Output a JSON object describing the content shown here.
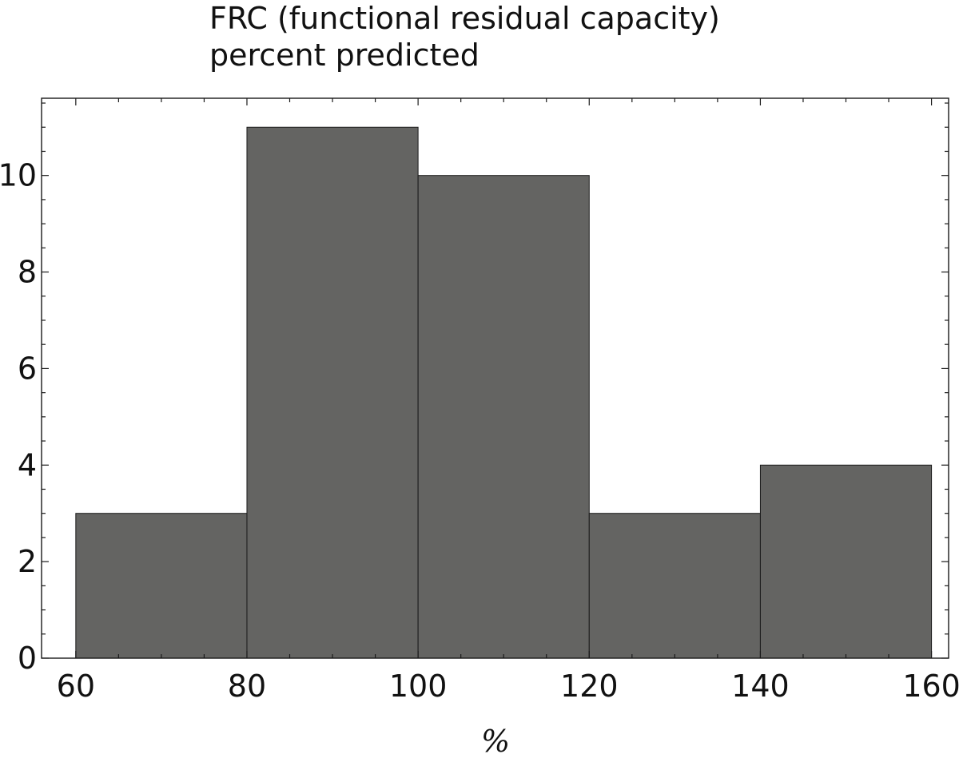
{
  "chart_data": {
    "type": "bar",
    "subtype": "histogram",
    "title_lines": [
      "FRC (functional residual capacity)",
      "percent predicted"
    ],
    "xlabel": "%",
    "ylabel": "",
    "bins": [
      {
        "from": 60,
        "to": 80,
        "count": 3
      },
      {
        "from": 80,
        "to": 100,
        "count": 11
      },
      {
        "from": 100,
        "to": 120,
        "count": 10
      },
      {
        "from": 120,
        "to": 140,
        "count": 3
      },
      {
        "from": 140,
        "to": 160,
        "count": 4
      }
    ],
    "xlim": [
      56,
      162
    ],
    "ylim": [
      0,
      11.6
    ],
    "x_ticks": [
      "60",
      "80",
      "100",
      "120",
      "140",
      "160"
    ],
    "y_ticks": [
      "0",
      "2",
      "4",
      "6",
      "8",
      "10"
    ],
    "bar_color": "#646462",
    "grid": false,
    "legend": "none"
  }
}
